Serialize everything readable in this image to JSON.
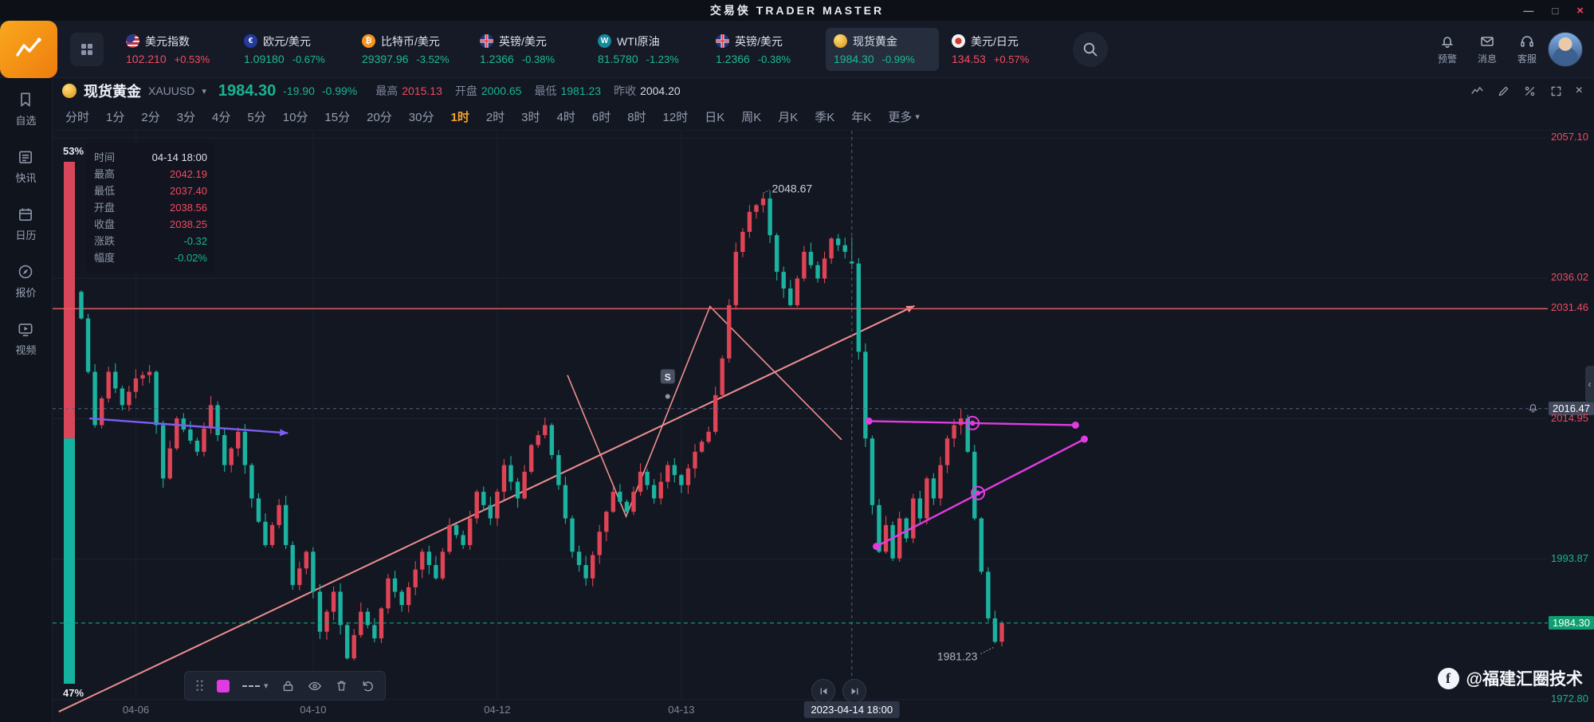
{
  "titlebar": {
    "title": "交易侠 TRADER MASTER",
    "controls": {
      "minimize": "—",
      "maximize": "□",
      "close": "×"
    }
  },
  "icons": {
    "caret_down": "▾",
    "chevron_left": "‹"
  },
  "topnav": {
    "tickers": [
      {
        "name": "美元指数",
        "value": "102.210",
        "change": "+0.53%",
        "dir": "up",
        "flag": "us",
        "glyph": ""
      },
      {
        "name": "欧元/美元",
        "value": "1.09180",
        "change": "-0.67%",
        "dir": "down",
        "flag": "eu",
        "glyph": "€"
      },
      {
        "name": "比特币/美元",
        "value": "29397.96",
        "change": "-3.52%",
        "dir": "down",
        "flag": "btc",
        "glyph": "₿"
      },
      {
        "name": "英镑/美元",
        "value": "1.2366",
        "change": "-0.38%",
        "dir": "down",
        "flag": "gb",
        "glyph": ""
      },
      {
        "name": "WTI原油",
        "value": "81.5780",
        "change": "-1.23%",
        "dir": "down",
        "flag": "wti",
        "glyph": "W"
      },
      {
        "name": "英镑/美元",
        "value": "1.2366",
        "change": "-0.38%",
        "dir": "down",
        "flag": "gb",
        "glyph": ""
      },
      {
        "name": "现货黄金",
        "value": "1984.30",
        "change": "-0.99%",
        "dir": "down",
        "flag": "gold",
        "glyph": "",
        "active": true
      },
      {
        "name": "美元/日元",
        "value": "134.53",
        "change": "+0.57%",
        "dir": "up",
        "flag": "jpy",
        "glyph": ""
      }
    ],
    "right_items": [
      {
        "id": "alert",
        "label": "预警"
      },
      {
        "id": "message",
        "label": "消息"
      },
      {
        "id": "service",
        "label": "客服"
      }
    ]
  },
  "sidebar": {
    "items": [
      {
        "id": "watchlist",
        "label": "自选"
      },
      {
        "id": "news",
        "label": "快讯"
      },
      {
        "id": "calendar",
        "label": "日历"
      },
      {
        "id": "quotes",
        "label": "报价"
      },
      {
        "id": "video",
        "label": "视频"
      }
    ]
  },
  "chart_header": {
    "symbol_name": "现货黄金",
    "symbol_code": "XAUUSD",
    "price": "1984.30",
    "change": "-19.90",
    "change_pct": "-0.99%",
    "stats": [
      {
        "label": "最高",
        "value": "2015.13",
        "dir": "up"
      },
      {
        "label": "开盘",
        "value": "2000.65",
        "dir": "down"
      },
      {
        "label": "最低",
        "value": "1981.23",
        "dir": "down"
      },
      {
        "label": "昨收",
        "value": "2004.20",
        "dir": "flat"
      }
    ]
  },
  "timeframes": {
    "items": [
      "分时",
      "1分",
      "2分",
      "3分",
      "4分",
      "5分",
      "10分",
      "15分",
      "20分",
      "30分",
      "1时",
      "2时",
      "3时",
      "4时",
      "6时",
      "8时",
      "12时",
      "日K",
      "周K",
      "月K",
      "季K",
      "年K"
    ],
    "active": "1时",
    "more_label": "更多"
  },
  "ohlc_panel": {
    "rows": [
      {
        "label": "时间",
        "value": "04-14 18:00",
        "dir": "flat"
      },
      {
        "label": "最高",
        "value": "2042.19",
        "dir": "up"
      },
      {
        "label": "最低",
        "value": "2037.40",
        "dir": "up"
      },
      {
        "label": "开盘",
        "value": "2038.56",
        "dir": "up"
      },
      {
        "label": "收盘",
        "value": "2038.25",
        "dir": "up"
      },
      {
        "label": "涨跌",
        "value": "-0.32",
        "dir": "down"
      },
      {
        "label": "幅度",
        "value": "-0.02%",
        "dir": "down"
      }
    ]
  },
  "chart_data": {
    "type": "candlestick",
    "title": "现货黄金 XAUUSD 1时",
    "ylim": [
      1972.8,
      2057.1
    ],
    "colors": {
      "up": "#de4455",
      "down": "#1cb2a0",
      "last_line": "#10a97d",
      "resistance": "#e25b66",
      "magenta": "#e13ce1",
      "violet": "#7d5df2",
      "salmon": "#ef8f8f"
    },
    "y_axis": {
      "labels": [
        {
          "price": 2057.1,
          "text": "2057.10",
          "kind": "up"
        },
        {
          "price": 2036.02,
          "text": "2036.02",
          "kind": "up"
        },
        {
          "price": 2031.46,
          "text": "2031.46",
          "kind": "up"
        },
        {
          "price": 2016.47,
          "text": "2016.47",
          "kind": "crosshair"
        },
        {
          "price": 2014.95,
          "text": "2014.95",
          "kind": "up"
        },
        {
          "price": 1993.87,
          "text": "1993.87",
          "kind": "down"
        },
        {
          "price": 1984.3,
          "text": "1984.30",
          "kind": "last"
        },
        {
          "price": 1972.8,
          "text": "1972.80",
          "kind": "down"
        }
      ],
      "grid_prices": [
        2057.1,
        2036.02,
        2014.95,
        1993.87,
        1972.8
      ]
    },
    "x_axis": {
      "ticks": [
        {
          "i": 8,
          "label": "04-06"
        },
        {
          "i": 34,
          "label": "04-10"
        },
        {
          "i": 61,
          "label": "04-12"
        },
        {
          "i": 88,
          "label": "04-13"
        }
      ]
    },
    "crosshair": {
      "i": 113,
      "price": 2016.47,
      "time_label": "2023-04-14 18:00"
    },
    "sentiment": {
      "long_pct": "53%",
      "short_pct": "47%",
      "long_ratio": 0.53
    },
    "candle_count": 136,
    "waypoints": [
      [
        0,
        2030
      ],
      [
        2,
        2014
      ],
      [
        4,
        2022
      ],
      [
        6,
        2017
      ],
      [
        8,
        2021
      ],
      [
        10,
        2022
      ],
      [
        12,
        2006
      ],
      [
        14,
        2015
      ],
      [
        17,
        2010
      ],
      [
        19,
        2017
      ],
      [
        21,
        2008
      ],
      [
        23,
        2013
      ],
      [
        25,
        2003
      ],
      [
        27,
        1996
      ],
      [
        29,
        2002
      ],
      [
        31,
        1990
      ],
      [
        33,
        1995
      ],
      [
        35,
        1983
      ],
      [
        37,
        1989
      ],
      [
        39,
        1979
      ],
      [
        41,
        1986
      ],
      [
        43,
        1982
      ],
      [
        45,
        1991
      ],
      [
        47,
        1987
      ],
      [
        50,
        1995
      ],
      [
        52,
        1991
      ],
      [
        54,
        1999
      ],
      [
        56,
        1996
      ],
      [
        58,
        2004
      ],
      [
        60,
        2000
      ],
      [
        62,
        2008
      ],
      [
        64,
        2003
      ],
      [
        66,
        2011
      ],
      [
        68,
        2014
      ],
      [
        70,
        2005
      ],
      [
        72,
        1995
      ],
      [
        74,
        1991
      ],
      [
        76,
        1998
      ],
      [
        78,
        2004
      ],
      [
        80,
        2001
      ],
      [
        82,
        2007
      ],
      [
        84,
        2003
      ],
      [
        86,
        2008
      ],
      [
        88,
        2005
      ],
      [
        90,
        2010
      ],
      [
        92,
        2013
      ],
      [
        94,
        2024
      ],
      [
        96,
        2040
      ],
      [
        98,
        2046
      ],
      [
        100,
        2048
      ],
      [
        102,
        2037
      ],
      [
        104,
        2032
      ],
      [
        106,
        2040
      ],
      [
        108,
        2036
      ],
      [
        110,
        2042
      ],
      [
        112,
        2040
      ],
      [
        113,
        2038
      ],
      [
        114,
        2025
      ],
      [
        115,
        2012
      ],
      [
        116,
        2002
      ],
      [
        117,
        1995
      ],
      [
        118,
        1999
      ],
      [
        119,
        1994
      ],
      [
        120,
        2000
      ],
      [
        121,
        1997
      ],
      [
        122,
        2003
      ],
      [
        123,
        2000
      ],
      [
        124,
        2006
      ],
      [
        125,
        2003
      ],
      [
        126,
        2008
      ],
      [
        127,
        2012
      ],
      [
        128,
        2014
      ],
      [
        129,
        2015
      ],
      [
        130,
        2010
      ],
      [
        131,
        2000
      ],
      [
        132,
        1992
      ],
      [
        133,
        1985
      ],
      [
        134,
        1981.5
      ],
      [
        135,
        1984.3
      ]
    ],
    "forced_candles": [
      {
        "i": 39,
        "l": 1978.8
      },
      {
        "i": 100,
        "h": 2048.67
      },
      {
        "i": 113,
        "o": 2038.56,
        "h": 2042.19,
        "l": 2037.4,
        "c": 2038.25
      },
      {
        "i": 134,
        "l": 1981.23
      }
    ],
    "annotations": [
      {
        "text": "2048.67",
        "i": 100,
        "price": 2048.67,
        "pos": "above"
      },
      {
        "text": "1981.23",
        "i": 134,
        "price": 1981.23,
        "pos": "below"
      }
    ],
    "sell_marker": {
      "text": "S",
      "i": 86,
      "price": 2021.3,
      "dot_price": 2018.3
    },
    "drawings": {
      "resistance_price": 2031.46,
      "last_price": 1984.3,
      "trend_line": {
        "from": {
          "i": -3.3,
          "p": 1971.0
        },
        "to": {
          "i": 122.2,
          "p": 2031.9
        }
      },
      "violet_arrow": {
        "from": {
          "i": 1.2,
          "p": 2015.0
        },
        "to": {
          "i": 30.3,
          "p": 2012.8
        }
      },
      "zigzag": {
        "points": [
          {
            "i": 71.3,
            "p": 2021.5
          },
          {
            "i": 79.9,
            "p": 2000.3
          },
          {
            "i": 92.2,
            "p": 2031.8
          },
          {
            "i": 111.5,
            "p": 2011.8
          }
        ]
      },
      "ray_a": {
        "from": {
          "i": 115.5,
          "p": 2014.6
        },
        "mid": {
          "i": 130.7,
          "p": 2014.3
        },
        "to": {
          "i": 145.8,
          "p": 2014.0
        }
      },
      "ray_b": {
        "from": {
          "i": 116.6,
          "p": 1995.8
        },
        "mid": {
          "i": 131.5,
          "p": 2003.8
        },
        "to": {
          "i": 147.1,
          "p": 2011.9
        }
      }
    }
  },
  "draw_toolbar": {
    "color": "#e23ae2"
  },
  "watermark": {
    "icon_glyph": "f",
    "text": "@福建汇圈技术"
  }
}
